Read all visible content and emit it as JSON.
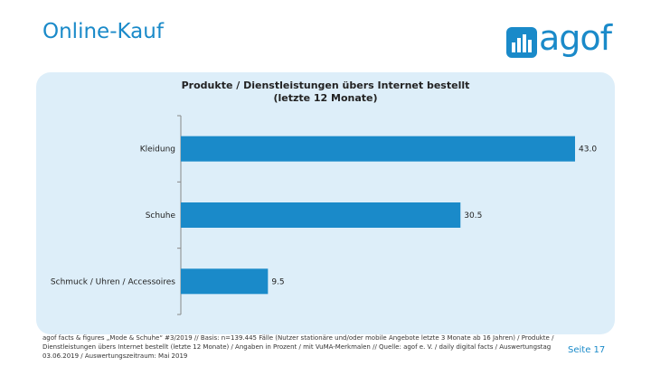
{
  "header": {
    "title": "Online-Kauf",
    "logo_text": "agof"
  },
  "colors": {
    "brand": "#1a8ac9",
    "panel": "#ddeef9",
    "bar": "#1a8ac9"
  },
  "chart_data": {
    "type": "bar",
    "orientation": "horizontal",
    "title": "Produkte / Dienstleistungen übers Internet bestellt\n(letzte 12 Monate)",
    "categories": [
      "Kleidung",
      "Schuhe",
      "Schmuck / Uhren / Accessoires"
    ],
    "values": [
      43.0,
      30.5,
      9.5
    ],
    "value_labels": [
      "43.0",
      "30.5",
      "9.5"
    ],
    "xlim": [
      0,
      43
    ],
    "grid": false,
    "legend": "none"
  },
  "footer": {
    "note": "agof facts & figures „Mode & Schuhe“ #3/2019 // Basis: n=139.445 Fälle (Nutzer stationäre und/oder mobile Angebote letzte 3 Monate ab 16 Jahren) / Produkte / Dienstleistungen übers Internet bestellt (letzte 12 Monate) / Angaben in Prozent / mit VuMA-Merkmalen // Quelle: agof e. V. / daily digital facts / Auswertungstag 03.06.2019 / Auswertungszeitraum: Mai 2019",
    "page": "Seite 17"
  }
}
